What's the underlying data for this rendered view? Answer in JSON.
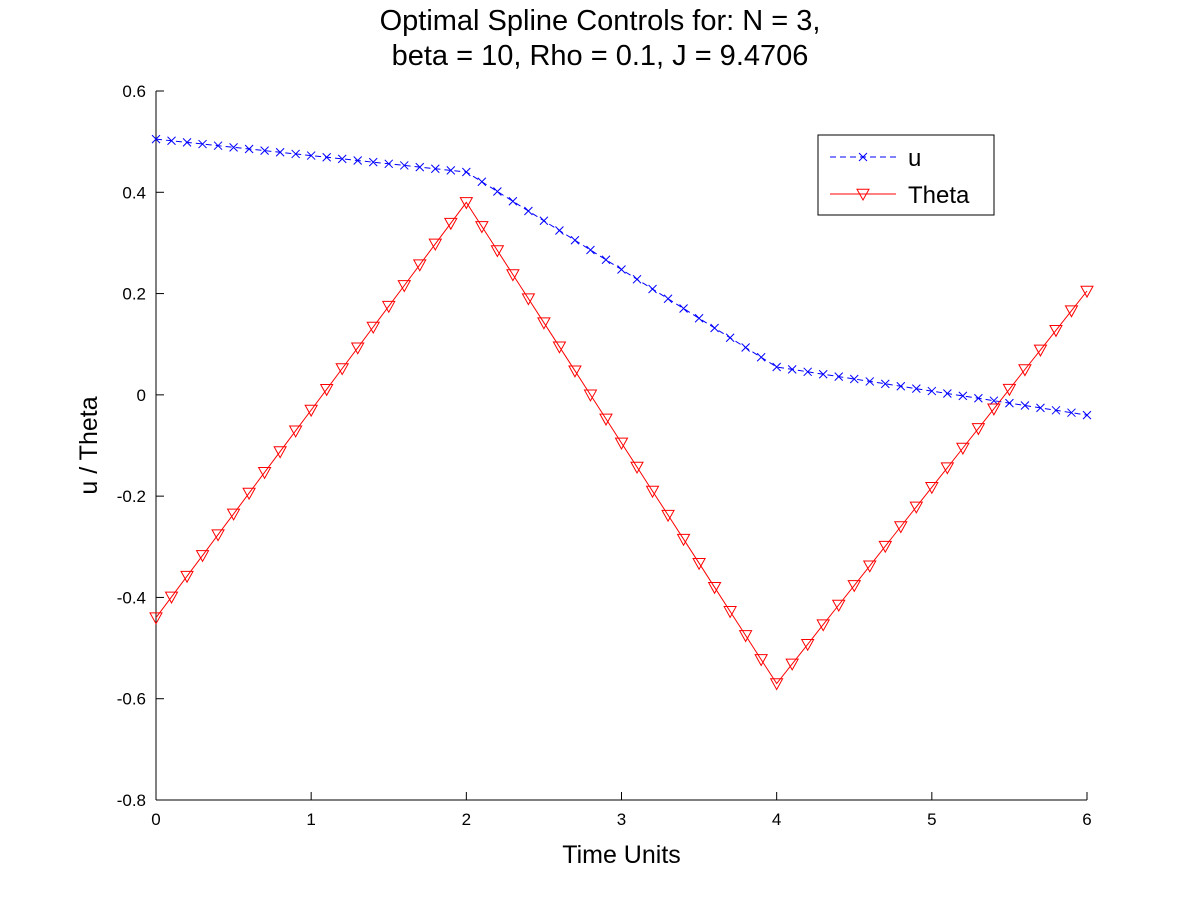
{
  "chart_data": {
    "type": "line",
    "title_lines": [
      "Optimal Spline Controls for:  N = 3,",
      "beta = 10, Rho = 0.1, J = 9.4706"
    ],
    "xlabel": "Time Units",
    "ylabel": "u / Theta",
    "xlim": [
      0,
      6
    ],
    "ylim": [
      -0.8,
      0.6
    ],
    "xticks": [
      0,
      1,
      2,
      3,
      4,
      5,
      6
    ],
    "xtick_labels": [
      "0",
      "1",
      "2",
      "3",
      "4",
      "5",
      "6"
    ],
    "yticks": [
      -0.8,
      -0.6,
      -0.4,
      -0.2,
      0,
      0.2,
      0.4,
      0.6
    ],
    "ytick_labels": [
      "-0.8",
      "-0.6",
      "-0.4",
      "-0.2",
      "0",
      "0.2",
      "0.4",
      "0.6"
    ],
    "grid": false,
    "legend_position": "top-right",
    "series": [
      {
        "name": "u",
        "color": "#0000ff",
        "line_style": "dashed",
        "marker": "x",
        "knots": [
          [
            0,
            0.505
          ],
          [
            2,
            0.44
          ],
          [
            4,
            0.055
          ],
          [
            6,
            -0.04
          ]
        ]
      },
      {
        "name": "Theta",
        "color": "#ff0000",
        "line_style": "solid",
        "marker": "triangle-down",
        "knots": [
          [
            0,
            -0.44
          ],
          [
            2,
            0.38
          ],
          [
            4,
            -0.57
          ],
          [
            6,
            0.205
          ]
        ]
      }
    ],
    "sample_step": 0.1
  }
}
